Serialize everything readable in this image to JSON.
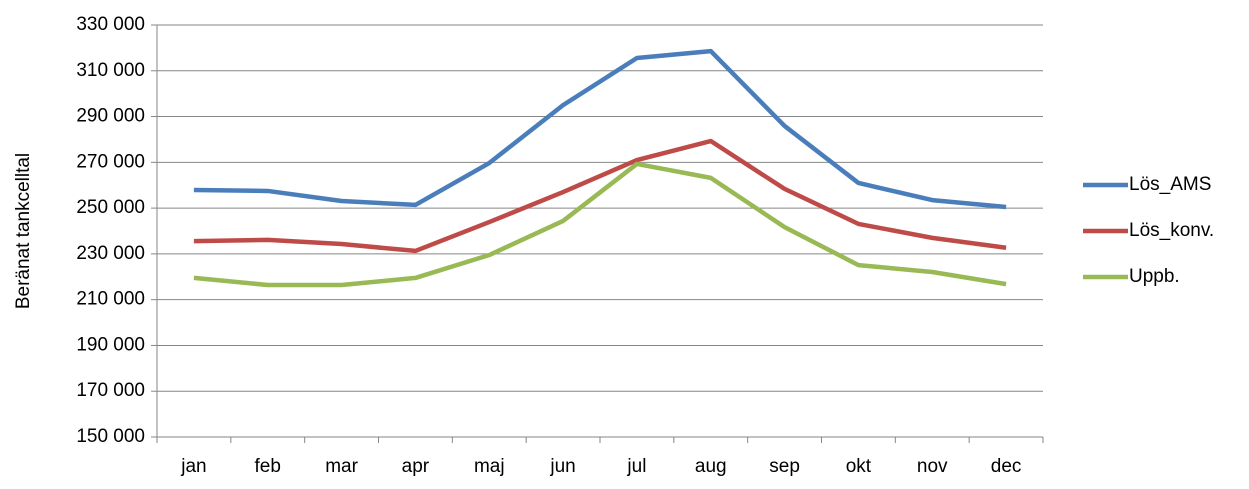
{
  "chart_data": {
    "type": "line",
    "y_label": "Beränat tankcelltal",
    "categories": [
      "jan",
      "feb",
      "mar",
      "apr",
      "maj",
      "jun",
      "jul",
      "aug",
      "sep",
      "okt",
      "nov",
      "dec"
    ],
    "series": [
      {
        "name": "Lös_AMS",
        "color": "#4a7ebb",
        "values": [
          257900,
          257500,
          253100,
          251400,
          269700,
          295000,
          315600,
          318600,
          285900,
          261000,
          253500,
          250500
        ]
      },
      {
        "name": "Lös_konv.",
        "color": "#be4b48",
        "values": [
          235600,
          236100,
          234300,
          231300,
          243900,
          257000,
          271000,
          279300,
          258400,
          243100,
          237000,
          232700
        ]
      },
      {
        "name": "Uppb.",
        "color": "#98b954",
        "values": [
          219500,
          216400,
          216400,
          219500,
          229500,
          244400,
          269300,
          263200,
          241700,
          225100,
          222100,
          216800
        ]
      }
    ],
    "ylim": [
      150000,
      330000
    ],
    "yticks": [
      {
        "value": 150000,
        "label": "150 000"
      },
      {
        "value": 170000,
        "label": "170 000"
      },
      {
        "value": 190000,
        "label": "190 000"
      },
      {
        "value": 210000,
        "label": "210 000"
      },
      {
        "value": 230000,
        "label": "230 000"
      },
      {
        "value": 250000,
        "label": "250 000"
      },
      {
        "value": 270000,
        "label": "270 000"
      },
      {
        "value": 290000,
        "label": "290 000"
      },
      {
        "value": 310000,
        "label": "310 000"
      },
      {
        "value": 330000,
        "label": "330 000"
      }
    ],
    "grid": true,
    "legend": "right"
  }
}
